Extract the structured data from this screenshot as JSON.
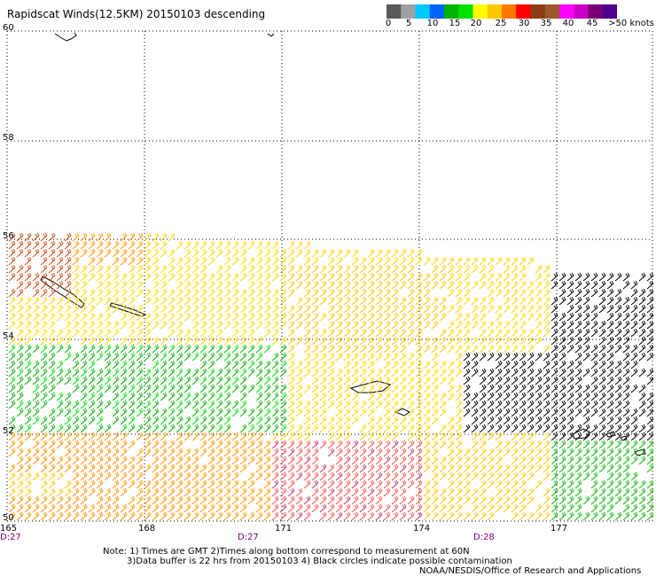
{
  "title": "Rapidscat Winds(12.5KM) 20150103 descending",
  "colorbar": {
    "colors": [
      "#5a5a5a",
      "#a0a0a0",
      "#00c8ff",
      "#0064ff",
      "#00b400",
      "#00e100",
      "#ffff00",
      "#ffc800",
      "#ff7800",
      "#ff0000",
      "#8c3c14",
      "#9a5a2c",
      "#ff00ff",
      "#c800c8",
      "#780078",
      "#50008c"
    ],
    "labels": [
      "0",
      "5",
      "10",
      "15",
      "20",
      "25",
      "30",
      "35",
      "40",
      "45",
      ">50 knots"
    ]
  },
  "axes": {
    "lat_labels": [
      "60",
      "58",
      "56",
      "54",
      "52",
      "50"
    ],
    "lon_labels": [
      "165",
      "168",
      "171",
      "174",
      "177"
    ],
    "time_labels": [
      "D:27",
      "D:27",
      "D:28"
    ]
  },
  "notes": {
    "line1": "Note: 1) Times are GMT 2)Times along bottom correspond to measurement at 60N",
    "line2": "3)Data buffer is 22 hrs from 20150103 4) Black circles indicate possible contamination",
    "credit": "NOAA/NESDIS/Office of Research and Applications"
  }
}
